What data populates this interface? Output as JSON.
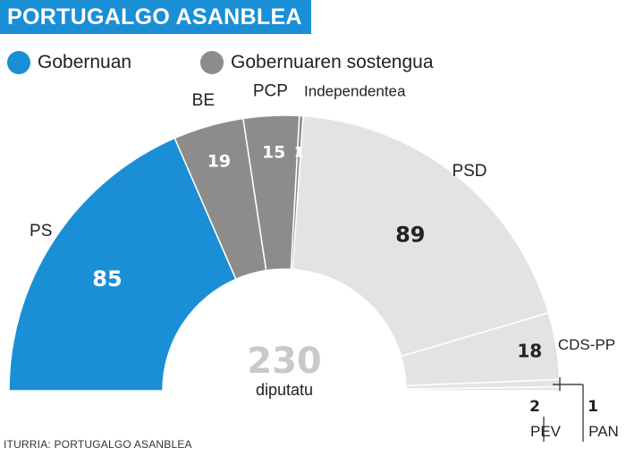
{
  "header": {
    "title": "PORTUGALGO ASANBLEA"
  },
  "legend": [
    {
      "label": "Gobernuan",
      "color": "#1a8fd6"
    },
    {
      "label": "Gobernuaren sostengua",
      "color": "#8e8c8a"
    }
  ],
  "source": "ITURRIA: PORTUGALGO ASANBLEA",
  "chart_data": {
    "type": "pie",
    "variant": "half-donut parliament chart",
    "total": {
      "value": "230",
      "label": "diputatu"
    },
    "slices": [
      {
        "party": "PS",
        "seats": 85,
        "group": "Gobernuan",
        "color": "#1a8fd6"
      },
      {
        "party": "BE",
        "seats": 19,
        "group": "Gobernuaren sostengua",
        "color": "#8e8c8a"
      },
      {
        "party": "PCP",
        "seats": 15,
        "group": "Gobernuaren sostengua",
        "color": "#8e8c8a"
      },
      {
        "party": "Independentea",
        "seats": 1,
        "group": "Gobernuaren sostengua",
        "color": "#8e8c8a"
      },
      {
        "party": "PSD",
        "seats": 89,
        "group": "",
        "color": "#e3e3e3"
      },
      {
        "party": "CDS-PP",
        "seats": 18,
        "group": "",
        "color": "#e3e3e3"
      },
      {
        "party": "PEV",
        "seats": 2,
        "group": "",
        "color": "#e3e3e3"
      },
      {
        "party": "PAN",
        "seats": 1,
        "group": "",
        "color": "#e3e3e3"
      }
    ]
  }
}
